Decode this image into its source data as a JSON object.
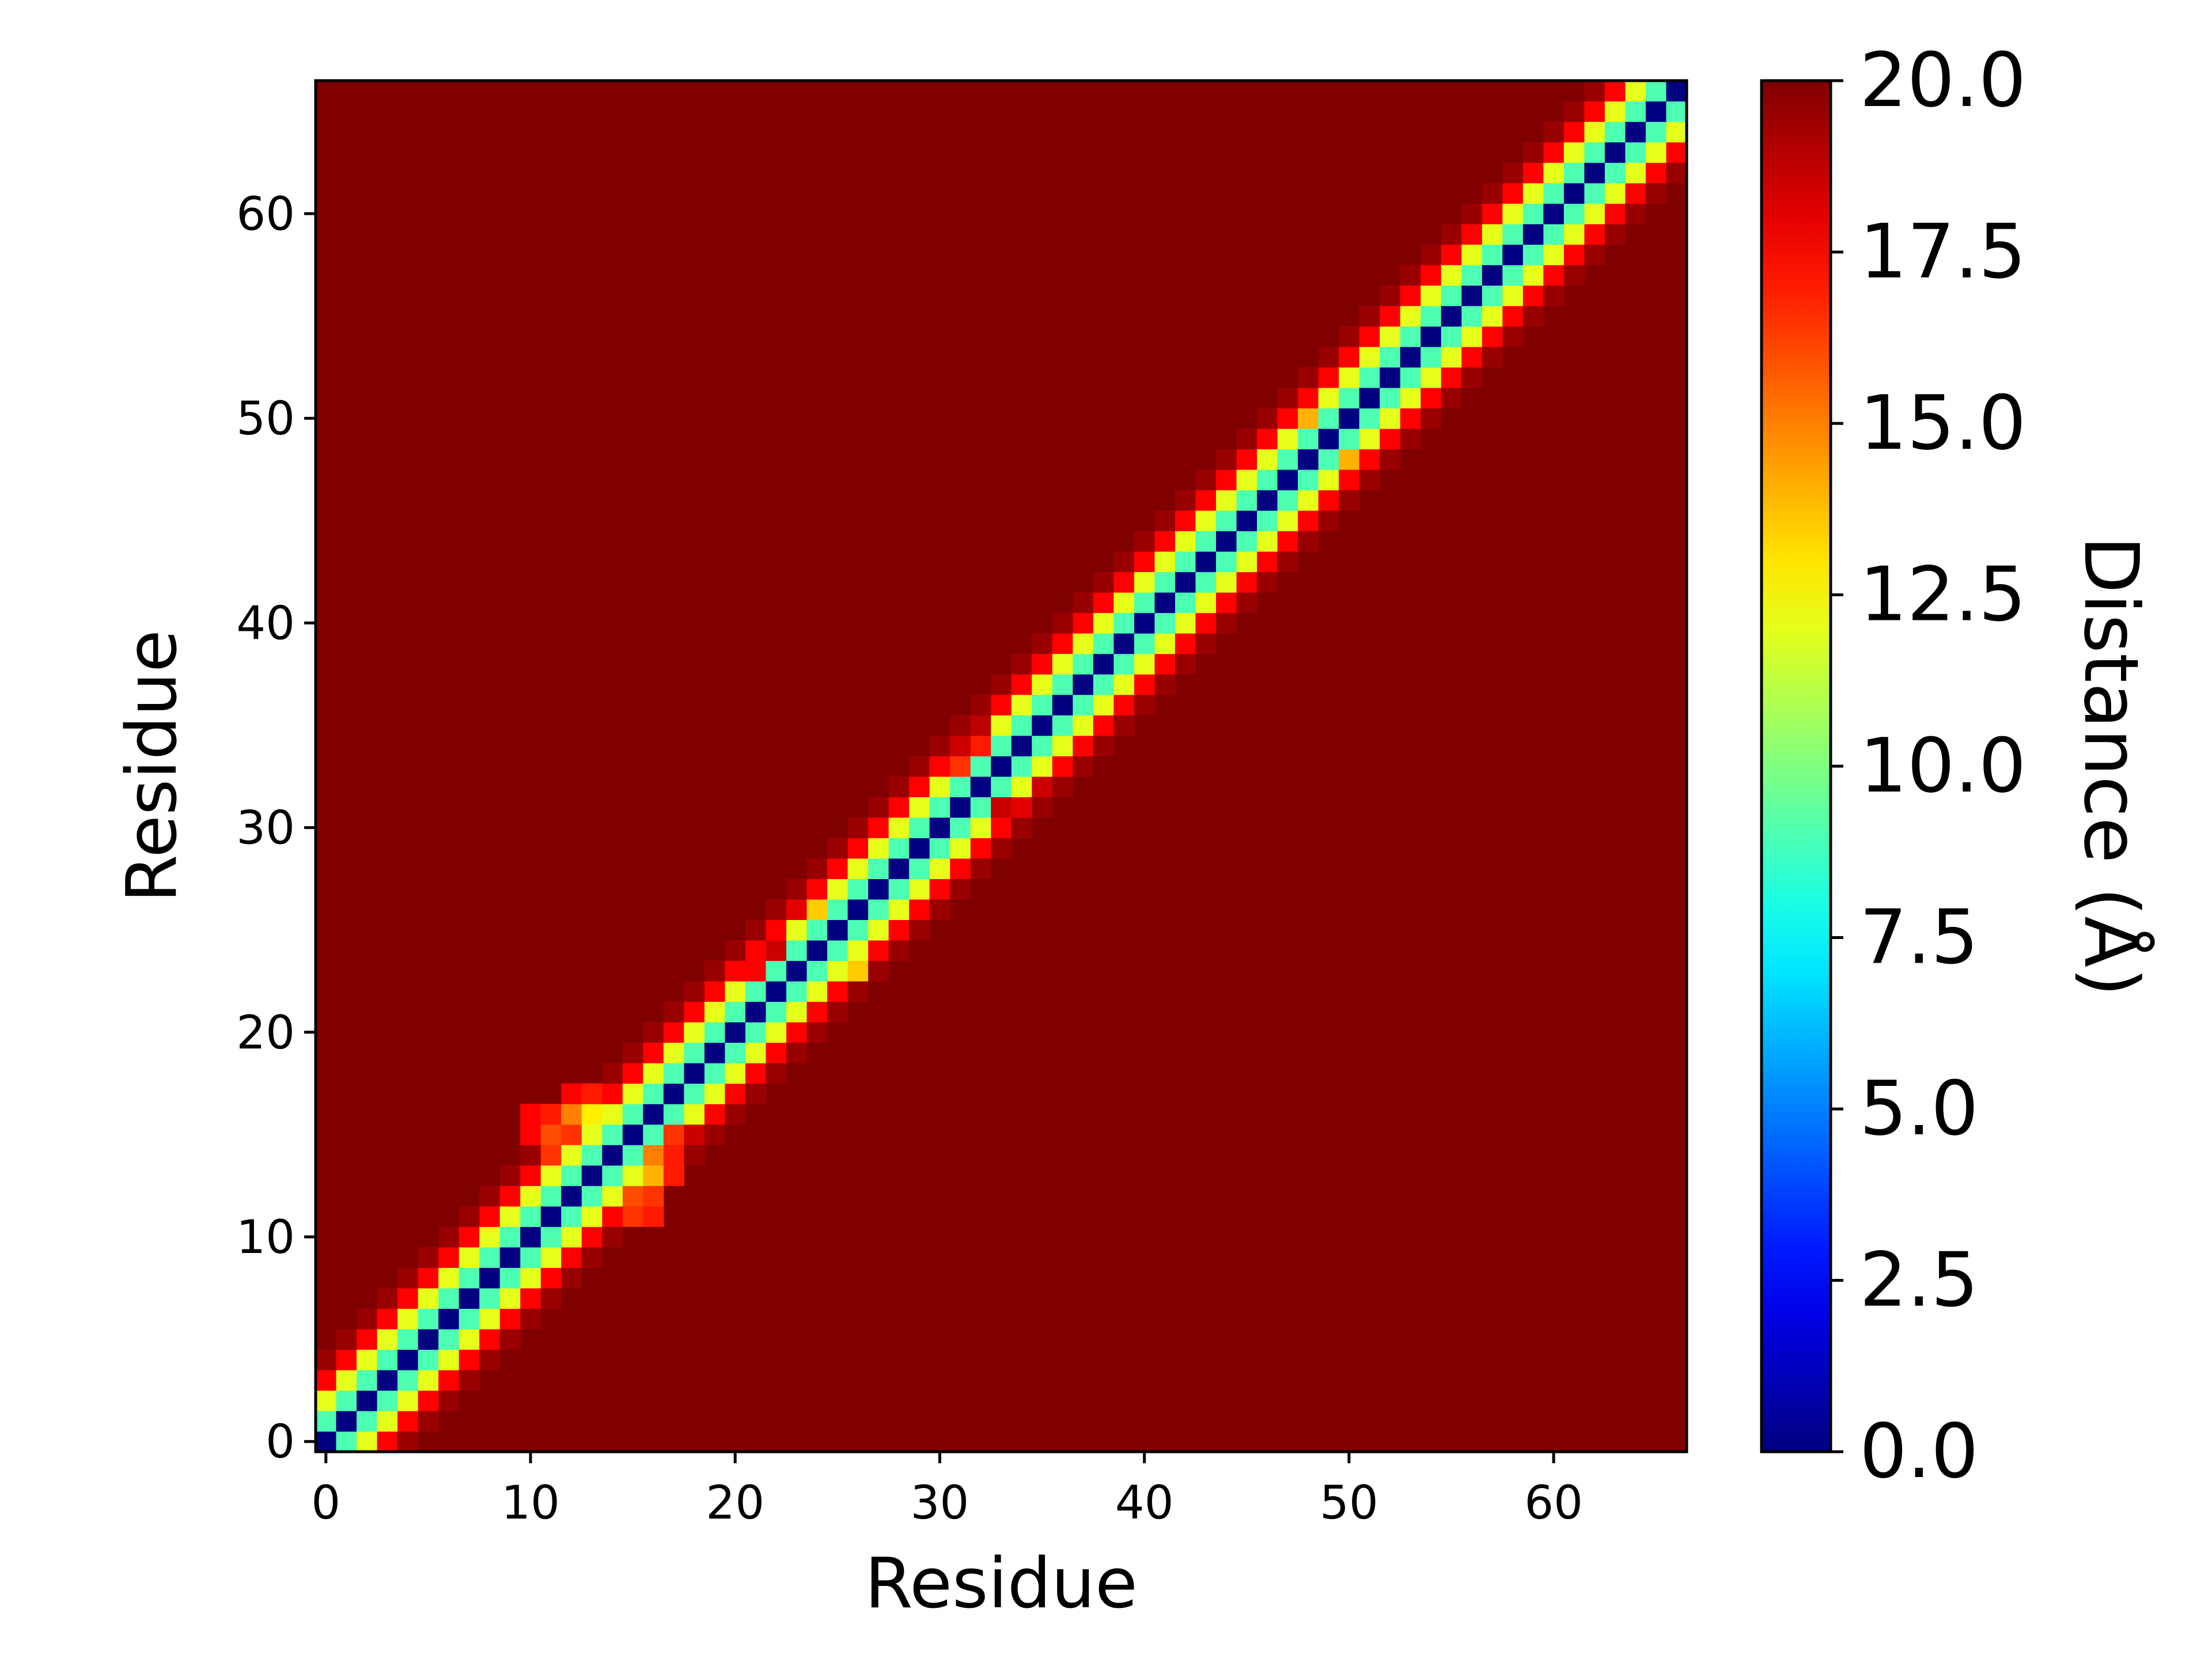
{
  "chart_data": {
    "type": "heatmap",
    "title": "",
    "xlabel": "Residue",
    "ylabel": "Residue",
    "n_residues": 67,
    "x_ticks": [
      0,
      10,
      20,
      30,
      40,
      50,
      60
    ],
    "y_ticks": [
      0,
      10,
      20,
      30,
      40,
      50,
      60
    ],
    "xlim": [
      -0.5,
      66.5
    ],
    "ylim": [
      -0.5,
      66.5
    ],
    "colormap": "jet",
    "colorbar": {
      "label": "Distance (Å)",
      "range": [
        0.0,
        20.0
      ],
      "ticks": [
        "0.0",
        "2.5",
        "5.0",
        "7.5",
        "10.0",
        "12.5",
        "15.0",
        "17.5",
        "20.0"
      ]
    },
    "background_value": 20.0,
    "distance_by_offset": {
      "0": 0.0,
      "1": 9.0,
      "2": 12.0,
      "3": 17.5,
      "4": 19.5
    },
    "notes_regions": [
      {
        "residues_i": [
          10,
          17
        ],
        "residues_j": [
          11,
          17
        ],
        "values": [
          14,
          16
        ]
      }
    ],
    "matrix_overrides": [
      [
        11,
        15,
        16.5
      ],
      [
        11,
        16,
        17.0
      ],
      [
        12,
        15,
        16.0
      ],
      [
        12,
        16,
        16.5
      ],
      [
        13,
        16,
        14.0
      ],
      [
        13,
        17,
        17.0
      ],
      [
        14,
        16,
        15.0
      ],
      [
        14,
        17,
        17.0
      ],
      [
        15,
        17,
        16.5
      ],
      [
        15,
        18,
        18.5
      ],
      [
        15,
        11,
        16.0
      ],
      [
        15,
        12,
        16.5
      ],
      [
        16,
        12,
        15.0
      ],
      [
        16,
        13,
        12.8
      ],
      [
        16,
        10,
        17.5
      ],
      [
        16,
        11,
        17.0
      ],
      [
        17,
        12,
        17.5
      ],
      [
        17,
        13,
        17.0
      ],
      [
        15,
        10,
        17.5
      ],
      [
        14,
        11,
        16.5
      ],
      [
        23,
        21,
        17.5
      ],
      [
        24,
        22,
        18.5
      ],
      [
        26,
        24,
        13.5
      ],
      [
        26,
        23,
        18.0
      ],
      [
        23,
        26,
        13.5
      ],
      [
        24,
        27,
        17.5
      ],
      [
        33,
        31,
        16.5
      ],
      [
        34,
        31,
        18.5
      ],
      [
        34,
        32,
        17.0
      ],
      [
        31,
        33,
        18.5
      ],
      [
        31,
        34,
        18.0
      ],
      [
        32,
        35,
        18.5
      ],
      [
        35,
        32,
        18.8
      ],
      [
        48,
        50,
        14.0
      ],
      [
        50,
        48,
        14.0
      ]
    ]
  }
}
